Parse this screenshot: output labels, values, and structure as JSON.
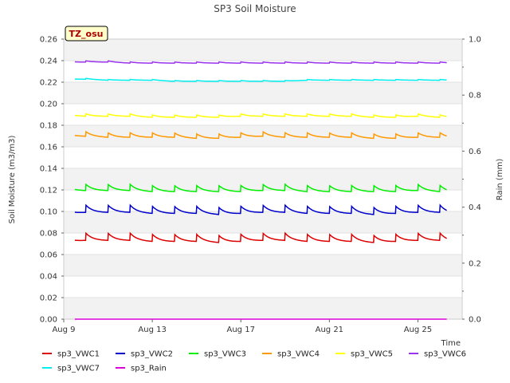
{
  "chart_data": {
    "type": "line",
    "title": "SP3 Soil Moisture",
    "xlabel": "Time",
    "ylabel": "Soil Moisture (m3/m3)",
    "y2label": "Rain (mm)",
    "badge": "TZ_osu",
    "xlim": [
      "2024-08-09",
      "2024-08-27"
    ],
    "ylim": [
      0,
      0.26
    ],
    "y2lim": [
      0,
      1.0
    ],
    "x_ticks": [
      {
        "date": "2024-08-09",
        "label": "Aug 9"
      },
      {
        "date": "2024-08-13",
        "label": "Aug 13"
      },
      {
        "date": "2024-08-17",
        "label": "Aug 17"
      },
      {
        "date": "2024-08-21",
        "label": "Aug 21"
      },
      {
        "date": "2024-08-25",
        "label": "Aug 25"
      }
    ],
    "y_ticks": [
      "0.00",
      "0.02",
      "0.04",
      "0.06",
      "0.08",
      "0.10",
      "0.12",
      "0.14",
      "0.16",
      "0.18",
      "0.20",
      "0.22",
      "0.24",
      "0.26"
    ],
    "y2_ticks": [
      "0.0",
      "0.2",
      "0.4",
      "0.6",
      "0.8",
      "1.0"
    ],
    "grid": "alternating horizontal bands",
    "legend_position": "bottom",
    "x": [
      "2024-08-09",
      "2024-08-10",
      "2024-08-11",
      "2024-08-12",
      "2024-08-13",
      "2024-08-14",
      "2024-08-15",
      "2024-08-16",
      "2024-08-17",
      "2024-08-18",
      "2024-08-19",
      "2024-08-20",
      "2024-08-21",
      "2024-08-22",
      "2024-08-23",
      "2024-08-24",
      "2024-08-25",
      "2024-08-26",
      "2024-08-27"
    ],
    "series": [
      {
        "name": "sp3_VWC1",
        "color": "#dd0000",
        "axis": "left",
        "values": [
          0.073,
          0.075,
          0.075,
          0.075,
          0.074,
          0.074,
          0.074,
          0.073,
          0.074,
          0.075,
          0.075,
          0.074,
          0.074,
          0.074,
          0.073,
          0.074,
          0.075,
          0.075,
          0.073
        ]
      },
      {
        "name": "sp3_VWC2",
        "color": "#0000cc",
        "axis": "left",
        "values": [
          0.099,
          0.101,
          0.101,
          0.101,
          0.1,
          0.1,
          0.1,
          0.099,
          0.1,
          0.101,
          0.101,
          0.1,
          0.1,
          0.1,
          0.099,
          0.1,
          0.101,
          0.101,
          0.099
        ]
      },
      {
        "name": "sp3_VWC3",
        "color": "#00ee00",
        "axis": "left",
        "values": [
          0.121,
          0.121,
          0.121,
          0.121,
          0.12,
          0.12,
          0.12,
          0.12,
          0.12,
          0.121,
          0.121,
          0.12,
          0.12,
          0.12,
          0.12,
          0.12,
          0.121,
          0.12,
          0.119
        ]
      },
      {
        "name": "sp3_VWC4",
        "color": "#ff9900",
        "axis": "left",
        "values": [
          0.171,
          0.171,
          0.17,
          0.17,
          0.17,
          0.17,
          0.169,
          0.169,
          0.17,
          0.171,
          0.17,
          0.17,
          0.17,
          0.17,
          0.169,
          0.169,
          0.17,
          0.17,
          0.169
        ]
      },
      {
        "name": "sp3_VWC5",
        "color": "#ffff00",
        "axis": "left",
        "values": [
          0.19,
          0.189,
          0.189,
          0.189,
          0.188,
          0.188,
          0.188,
          0.188,
          0.189,
          0.189,
          0.189,
          0.189,
          0.189,
          0.189,
          0.188,
          0.188,
          0.189,
          0.188,
          0.188
        ]
      },
      {
        "name": "sp3_VWC6",
        "color": "#9933ee",
        "axis": "left",
        "values": [
          0.239,
          0.239,
          0.239,
          0.238,
          0.238,
          0.238,
          0.238,
          0.238,
          0.238,
          0.238,
          0.238,
          0.238,
          0.238,
          0.238,
          0.238,
          0.238,
          0.238,
          0.238,
          0.238
        ]
      },
      {
        "name": "sp3_VWC7",
        "color": "#00eeee",
        "axis": "left",
        "values": [
          0.223,
          0.223,
          0.222,
          0.222,
          0.222,
          0.221,
          0.221,
          0.221,
          0.221,
          0.221,
          0.221,
          0.222,
          0.222,
          0.222,
          0.222,
          0.222,
          0.222,
          0.222,
          0.222
        ]
      },
      {
        "name": "sp3_Rain",
        "color": "#dd00dd",
        "axis": "right",
        "values": [
          0,
          0,
          0,
          0,
          0,
          0,
          0,
          0,
          0,
          0,
          0,
          0,
          0,
          0,
          0,
          0,
          0,
          0,
          0
        ]
      }
    ]
  }
}
